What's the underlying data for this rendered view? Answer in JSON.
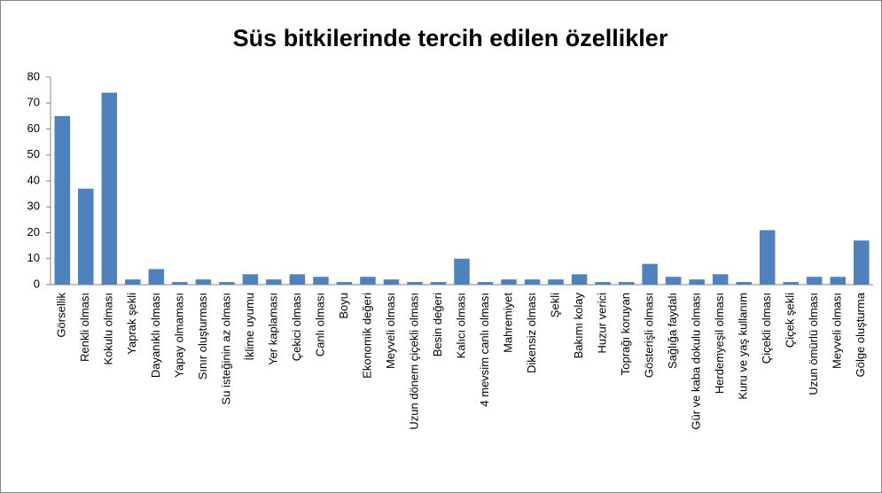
{
  "chart_data": {
    "type": "bar",
    "title": "Süs bitkilerinde tercih edilen özellikler",
    "categories": [
      "Görsellik",
      "Renkli olması",
      "Kokulu olması",
      "Yaprak şekli",
      "Dayanıklı olması",
      "Yapay olmaması",
      "Sınır oluşturması",
      "Su isteğinin az olması",
      "İklime uyumu",
      "Yer kaplaması",
      "Çekici olması",
      "Canlı olması",
      "Boyu",
      "Ekonomik değeri",
      "Meyveli olması",
      "Uzun dönem çiçekli olması",
      "Besin değeri",
      "Kalıcı olması",
      "4 mevsim canlı olması",
      "Mahremiyet",
      "Dikensiz olması",
      "Şekli",
      "Bakımı kolay",
      "Huzur verici",
      "Toprağı koruyan",
      "Gösterişli olması",
      "Sağlığa faydalı",
      "Gür ve kaba dokulu olması",
      "Herdemyeşil olması",
      "Kuru ve yaş kullanım",
      "Çiçekli olması",
      "Çiçek şekli",
      "Uzun ömürlü olması",
      "Meyveli olması",
      "Gölge oluşturma"
    ],
    "values": [
      65,
      37,
      74,
      2,
      6,
      1,
      2,
      1,
      4,
      2,
      4,
      3,
      1,
      3,
      2,
      1,
      1,
      10,
      1,
      2,
      2,
      2,
      4,
      1,
      1,
      8,
      3,
      2,
      4,
      1,
      21,
      1,
      3,
      3,
      17
    ],
    "color": "#4f81bd",
    "ylim": [
      0,
      80
    ],
    "yticks": [
      0,
      10,
      20,
      30,
      40,
      50,
      60,
      70,
      80
    ],
    "grid": false
  }
}
